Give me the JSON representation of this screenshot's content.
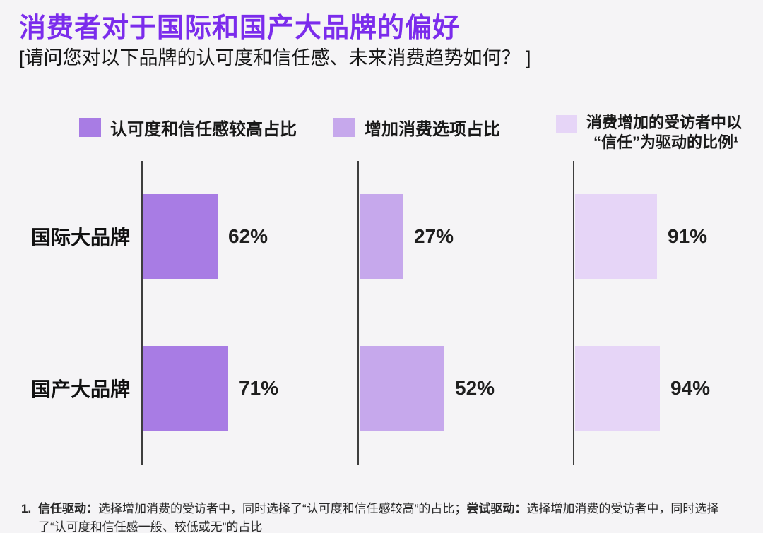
{
  "title": "消费者对于国际和国产大品牌的偏好",
  "subtitle": "[请问您对以下品牌的认可度和信任感、未来消费趋势如何？ ]",
  "colors": {
    "title": "#7B2CEC",
    "series_high_trust": "#A87CE4",
    "series_increase_spend": "#C6A8EC",
    "series_trust_driven": "#E6D5F7",
    "axis": "#3E3E3E",
    "background": "#F5F4F6",
    "text": "#191919"
  },
  "legend": {
    "items": [
      {
        "lines": [
          "认可度和信任感较高占比"
        ],
        "color": "#A87CE4"
      },
      {
        "lines": [
          "增加消费选项占比"
        ],
        "color": "#C6A8EC"
      },
      {
        "lines": [
          "消费增加的受访者中以",
          "“信任”为驱动的比例¹"
        ],
        "color": "#E6D5F7"
      }
    ]
  },
  "chart_data": {
    "type": "bar",
    "orientation": "horizontal",
    "title": "消费者对于国际和国产大品牌的偏好",
    "categories": [
      "国际大品牌",
      "国产大品牌"
    ],
    "series": [
      {
        "name": "认可度和信任感较高占比",
        "values": [
          62,
          71
        ],
        "labels": [
          "62%",
          "71%"
        ],
        "color": "#A87CE4"
      },
      {
        "name": "增加消费选项占比",
        "values": [
          27,
          52
        ],
        "labels": [
          "27%",
          "52%"
        ],
        "color": "#C6A8EC"
      },
      {
        "name": "消费增加的受访者中以“信任”为驱动的比例¹",
        "values": [
          91,
          94
        ],
        "labels": [
          "91%",
          "94%"
        ],
        "color": "#E6D5F7"
      }
    ],
    "unit": "%",
    "xlim": [
      0,
      100
    ],
    "grid": false,
    "legend_position": "top"
  },
  "footnote": {
    "marker": "1.",
    "segments": [
      {
        "text": "信任驱动：",
        "bold": true
      },
      {
        "text": "选择增加消费的受访者中，同时选择了“认可度和信任感较高”的占比；",
        "bold": false
      },
      {
        "text": "尝试驱动：",
        "bold": true
      },
      {
        "text": "选择增加消费的受访者中，同时选择了“认可度和信任感一般、较低或无”的占比",
        "bold": false
      }
    ]
  }
}
